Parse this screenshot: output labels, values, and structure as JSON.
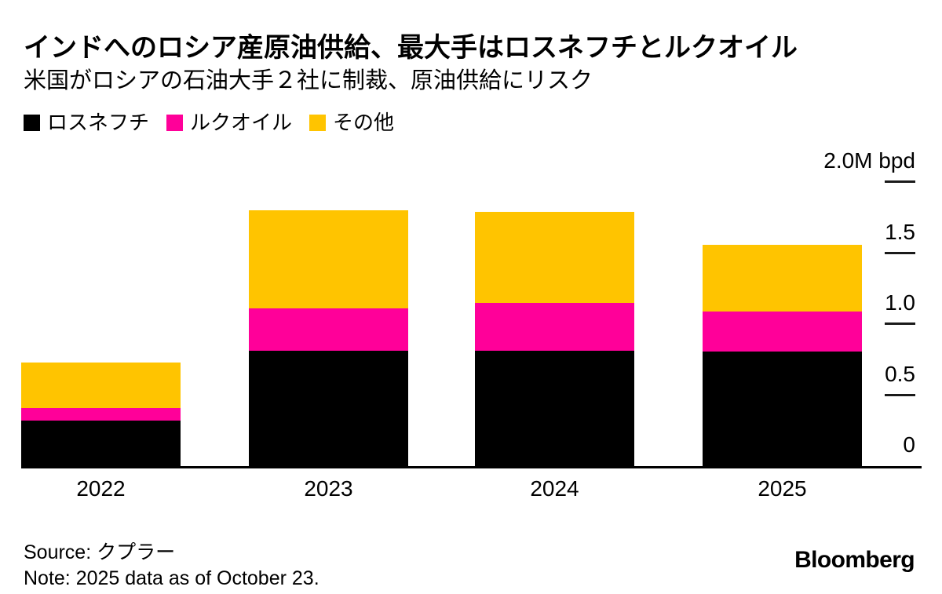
{
  "header": {
    "title": "インドへのロシア産原油供給、最大手はロスネフチとルクオイル",
    "subtitle": "米国がロシアの石油大手２社に制裁、原油供給にリスク"
  },
  "chart_data": {
    "type": "bar",
    "stacked": true,
    "title": "インドへのロシア産原油供給、最大手はロスネフチとルクオイル",
    "subtitle": "米国がロシアの石油大手２社に制裁、原油供給にリスク",
    "unit_label": "2.0M bpd",
    "categories": [
      "2022",
      "2023",
      "2024",
      "2025"
    ],
    "series": [
      {
        "key": "rosneft",
        "name": "ロスネフチ",
        "color": "#000000",
        "values": [
          0.32,
          0.81,
          0.81,
          0.81
        ]
      },
      {
        "key": "lukoil",
        "name": "ルクオイル",
        "color": "#ff0099",
        "values": [
          0.09,
          0.3,
          0.34,
          0.28
        ]
      },
      {
        "key": "others",
        "name": "その他",
        "color": "#ffc400",
        "values": [
          0.32,
          0.69,
          0.64,
          0.47
        ]
      }
    ],
    "totals": [
      0.73,
      1.8,
      1.79,
      1.56
    ],
    "y_ticks": [
      {
        "value": 2.0,
        "label": "2.0M bpd"
      },
      {
        "value": 1.5,
        "label": "1.5"
      },
      {
        "value": 1.0,
        "label": "1.0"
      },
      {
        "value": 0.5,
        "label": "0.5"
      },
      {
        "value": 0,
        "label": "0"
      }
    ],
    "ylim": [
      0,
      2.0
    ],
    "grid": false,
    "legend_position": "top-left",
    "axis_side": "right"
  },
  "footer": {
    "source": "Source: クプラー",
    "note": "Note: 2025 data as of October 23.",
    "brand": "Bloomberg"
  }
}
